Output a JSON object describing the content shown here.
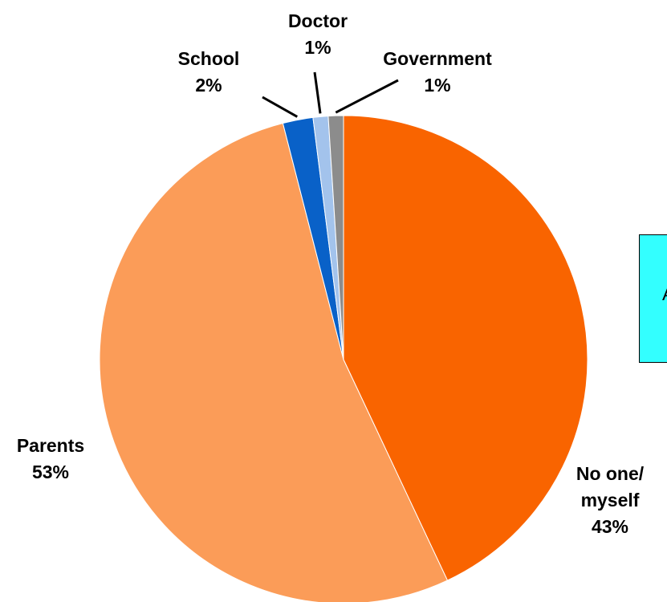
{
  "chart_data": {
    "type": "pie",
    "slices": [
      {
        "label": "No one/ myself",
        "value": 43,
        "display": "43%",
        "color": "#f96400"
      },
      {
        "label": "Parents",
        "value": 53,
        "display": "53%",
        "color": "#fb9c58"
      },
      {
        "label": "School",
        "value": 2,
        "display": "2%",
        "color": "#0961c8"
      },
      {
        "label": "Doctor",
        "value": 1,
        "display": "1%",
        "color": "#a3c3ec"
      },
      {
        "label": "Government",
        "value": 1,
        "display": "1%",
        "color": "#8c8c8c"
      }
    ]
  },
  "labels": {
    "noone_line1": "No one/",
    "noone_line2": "myself",
    "noone_pct": "43%",
    "parents_name": "Parents",
    "parents_pct": "53%",
    "school_name": "School",
    "school_pct": "2%",
    "doctor_name": "Doctor",
    "doctor_pct": "1%",
    "government_name": "Government",
    "government_pct": "1%"
  },
  "callout": {
    "text": "A",
    "background": "#33ffff"
  }
}
